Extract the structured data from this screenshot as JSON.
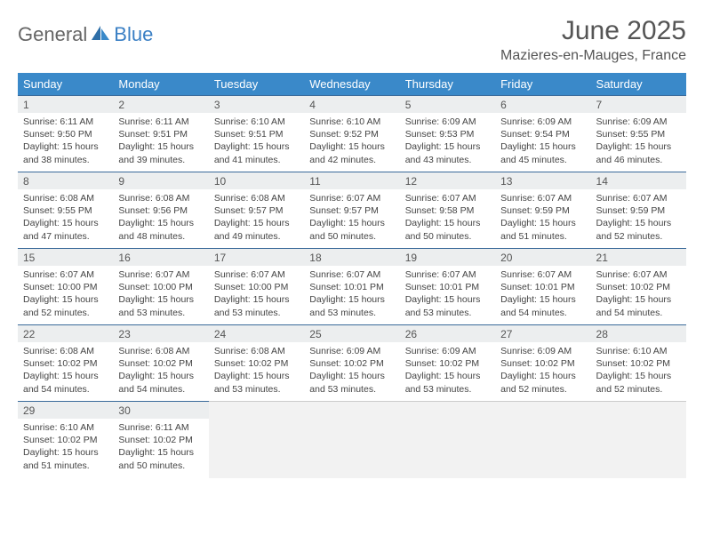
{
  "logo": {
    "text1": "General",
    "text2": "Blue"
  },
  "title": "June 2025",
  "location": "Mazieres-en-Mauges, France",
  "columns": [
    "Sunday",
    "Monday",
    "Tuesday",
    "Wednesday",
    "Thursday",
    "Friday",
    "Saturday"
  ],
  "colors": {
    "header_bg": "#3a89c9",
    "header_fg": "#ffffff",
    "cell_border": "#3a6a9a",
    "daynum_bg": "#eceeef",
    "logo_accent": "#3a7fc4"
  },
  "weeks": [
    [
      {
        "n": "1",
        "sr": "6:11 AM",
        "ss": "9:50 PM",
        "dh": "15",
        "dm": "38"
      },
      {
        "n": "2",
        "sr": "6:11 AM",
        "ss": "9:51 PM",
        "dh": "15",
        "dm": "39"
      },
      {
        "n": "3",
        "sr": "6:10 AM",
        "ss": "9:51 PM",
        "dh": "15",
        "dm": "41"
      },
      {
        "n": "4",
        "sr": "6:10 AM",
        "ss": "9:52 PM",
        "dh": "15",
        "dm": "42"
      },
      {
        "n": "5",
        "sr": "6:09 AM",
        "ss": "9:53 PM",
        "dh": "15",
        "dm": "43"
      },
      {
        "n": "6",
        "sr": "6:09 AM",
        "ss": "9:54 PM",
        "dh": "15",
        "dm": "45"
      },
      {
        "n": "7",
        "sr": "6:09 AM",
        "ss": "9:55 PM",
        "dh": "15",
        "dm": "46"
      }
    ],
    [
      {
        "n": "8",
        "sr": "6:08 AM",
        "ss": "9:55 PM",
        "dh": "15",
        "dm": "47"
      },
      {
        "n": "9",
        "sr": "6:08 AM",
        "ss": "9:56 PM",
        "dh": "15",
        "dm": "48"
      },
      {
        "n": "10",
        "sr": "6:08 AM",
        "ss": "9:57 PM",
        "dh": "15",
        "dm": "49"
      },
      {
        "n": "11",
        "sr": "6:07 AM",
        "ss": "9:57 PM",
        "dh": "15",
        "dm": "50"
      },
      {
        "n": "12",
        "sr": "6:07 AM",
        "ss": "9:58 PM",
        "dh": "15",
        "dm": "50"
      },
      {
        "n": "13",
        "sr": "6:07 AM",
        "ss": "9:59 PM",
        "dh": "15",
        "dm": "51"
      },
      {
        "n": "14",
        "sr": "6:07 AM",
        "ss": "9:59 PM",
        "dh": "15",
        "dm": "52"
      }
    ],
    [
      {
        "n": "15",
        "sr": "6:07 AM",
        "ss": "10:00 PM",
        "dh": "15",
        "dm": "52"
      },
      {
        "n": "16",
        "sr": "6:07 AM",
        "ss": "10:00 PM",
        "dh": "15",
        "dm": "53"
      },
      {
        "n": "17",
        "sr": "6:07 AM",
        "ss": "10:00 PM",
        "dh": "15",
        "dm": "53"
      },
      {
        "n": "18",
        "sr": "6:07 AM",
        "ss": "10:01 PM",
        "dh": "15",
        "dm": "53"
      },
      {
        "n": "19",
        "sr": "6:07 AM",
        "ss": "10:01 PM",
        "dh": "15",
        "dm": "53"
      },
      {
        "n": "20",
        "sr": "6:07 AM",
        "ss": "10:01 PM",
        "dh": "15",
        "dm": "54"
      },
      {
        "n": "21",
        "sr": "6:07 AM",
        "ss": "10:02 PM",
        "dh": "15",
        "dm": "54"
      }
    ],
    [
      {
        "n": "22",
        "sr": "6:08 AM",
        "ss": "10:02 PM",
        "dh": "15",
        "dm": "54"
      },
      {
        "n": "23",
        "sr": "6:08 AM",
        "ss": "10:02 PM",
        "dh": "15",
        "dm": "54"
      },
      {
        "n": "24",
        "sr": "6:08 AM",
        "ss": "10:02 PM",
        "dh": "15",
        "dm": "53"
      },
      {
        "n": "25",
        "sr": "6:09 AM",
        "ss": "10:02 PM",
        "dh": "15",
        "dm": "53"
      },
      {
        "n": "26",
        "sr": "6:09 AM",
        "ss": "10:02 PM",
        "dh": "15",
        "dm": "53"
      },
      {
        "n": "27",
        "sr": "6:09 AM",
        "ss": "10:02 PM",
        "dh": "15",
        "dm": "52"
      },
      {
        "n": "28",
        "sr": "6:10 AM",
        "ss": "10:02 PM",
        "dh": "15",
        "dm": "52"
      }
    ],
    [
      {
        "n": "29",
        "sr": "6:10 AM",
        "ss": "10:02 PM",
        "dh": "15",
        "dm": "51"
      },
      {
        "n": "30",
        "sr": "6:11 AM",
        "ss": "10:02 PM",
        "dh": "15",
        "dm": "50"
      },
      null,
      null,
      null,
      null,
      null
    ]
  ],
  "labels": {
    "sunrise": "Sunrise:",
    "sunset": "Sunset:",
    "daylight": "Daylight:",
    "hours": "hours",
    "and": "and",
    "minutes": "minutes."
  }
}
